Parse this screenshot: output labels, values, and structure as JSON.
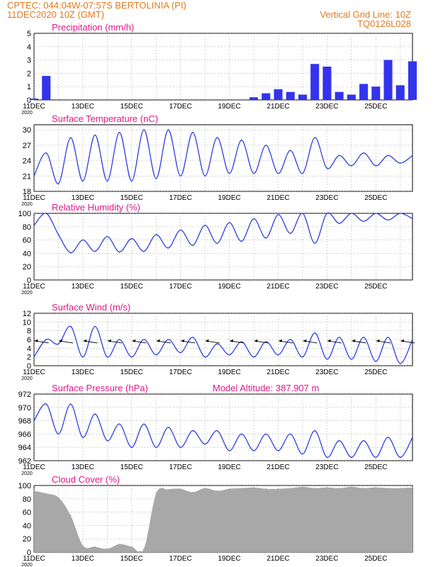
{
  "header": {
    "line1": "CPTEC:   044:04W-07:57S   BERTOLINIA (PI)",
    "line2": "11DEC2020 10Z (GMT)",
    "grid_note": "Vertical Grid Line: 10Z",
    "code": "TQ0126L028"
  },
  "colors": {
    "header": "#e07a1f",
    "title": "#e0188a",
    "line": "#2f3fe0",
    "bar": "#3333ee",
    "cloud": "#a8a8a8",
    "arrow": "#000000"
  },
  "x_ticks": [
    "11DEC",
    "13DEC",
    "15DEC",
    "17DEC",
    "19DEC",
    "21DEC",
    "23DEC",
    "25DEC"
  ],
  "year_label": "2020",
  "chart_data": [
    {
      "type": "bar",
      "name": "precipitation",
      "title": "Precipitation (mm/h)",
      "ylim": [
        0,
        5
      ],
      "yticks": [
        0,
        1,
        2,
        3,
        4,
        5
      ],
      "grid": true,
      "color": "#3333ee",
      "days": [
        0,
        0.5,
        1,
        1.5,
        2,
        2.5,
        3,
        3.5,
        4,
        4.5,
        5,
        5.5,
        6,
        6.5,
        7,
        7.5,
        8,
        8.5,
        9,
        9.5,
        10,
        10.5,
        11,
        11.5,
        12,
        12.5,
        13,
        13.5,
        14,
        14.5,
        15,
        15.5
      ],
      "values": [
        0.1,
        1.8,
        0,
        0,
        0,
        0,
        0,
        0,
        0,
        0,
        0,
        0,
        0,
        0,
        0,
        0,
        0,
        0,
        0.2,
        0.5,
        0.8,
        0.6,
        0.4,
        2.7,
        2.5,
        0.6,
        0.4,
        1.2,
        1.0,
        3.0,
        1.1,
        2.9
      ]
    },
    {
      "type": "line",
      "name": "temperature",
      "title": "Surface Temperature (nC)",
      "ylim": [
        18,
        31
      ],
      "yticks": [
        18,
        21,
        24,
        27,
        30
      ],
      "grid": true,
      "color": "#2f3fe0",
      "days": [
        0,
        0.5,
        1,
        1.5,
        2,
        2.5,
        3,
        3.5,
        4,
        4.5,
        5,
        5.5,
        6,
        6.5,
        7,
        7.5,
        8,
        8.5,
        9,
        9.5,
        10,
        10.5,
        11,
        11.5,
        12,
        12.5,
        13,
        13.5,
        14,
        14.5,
        15,
        15.5
      ],
      "values": [
        21,
        25.5,
        19.5,
        28.5,
        20,
        29,
        20,
        29.5,
        20,
        30,
        20.5,
        30,
        21,
        29.5,
        21,
        28.5,
        21.5,
        28,
        21.5,
        27,
        21.5,
        26,
        21.5,
        28.5,
        22.5,
        25,
        23,
        25.5,
        23,
        25,
        23.5,
        25
      ]
    },
    {
      "type": "line",
      "name": "humidity",
      "title": "Relative Humidity (%)",
      "ylim": [
        0,
        100
      ],
      "yticks": [
        0,
        20,
        40,
        60,
        80,
        100
      ],
      "grid": true,
      "color": "#2f3fe0",
      "days": [
        0,
        0.5,
        1,
        1.5,
        2,
        2.5,
        3,
        3.5,
        4,
        4.5,
        5,
        5.5,
        6,
        6.5,
        7,
        7.5,
        8,
        8.5,
        9,
        9.5,
        10,
        10.5,
        11,
        11.5,
        12,
        12.5,
        13,
        13.5,
        14,
        14.5,
        15,
        15.5
      ],
      "values": [
        82,
        100,
        68,
        41,
        60,
        43,
        65,
        42,
        62,
        43,
        68,
        48,
        75,
        52,
        82,
        55,
        86,
        58,
        92,
        63,
        98,
        70,
        100,
        55,
        100,
        85,
        100,
        88,
        100,
        90,
        100,
        92
      ]
    },
    {
      "type": "line",
      "name": "wind",
      "title": "Surface Wind (m/s)",
      "ylim": [
        0,
        12
      ],
      "yticks": [
        0,
        2,
        4,
        6,
        8,
        10,
        12
      ],
      "grid": true,
      "color": "#2f3fe0",
      "days": [
        0,
        0.5,
        1,
        1.5,
        2,
        2.5,
        3,
        3.5,
        4,
        4.5,
        5,
        5.5,
        6,
        6.5,
        7,
        7.5,
        8,
        8.5,
        9,
        9.5,
        10,
        10.5,
        11,
        11.5,
        12,
        12.5,
        13,
        13.5,
        14,
        14.5,
        15,
        15.5
      ],
      "values": [
        2,
        6,
        5,
        9,
        2,
        9,
        2,
        6,
        2,
        6,
        2.5,
        6,
        3,
        6.5,
        2,
        5,
        2.5,
        5.5,
        2,
        5.5,
        2.5,
        6,
        2,
        7.5,
        1.5,
        6.5,
        1.5,
        6.5,
        1,
        6.5,
        0.5,
        6
      ]
    },
    {
      "type": "line",
      "name": "pressure",
      "title": "Surface Pressure (hPa)",
      "annotation": "Model Altitude: 387.907  m",
      "ylim": [
        962,
        972
      ],
      "yticks": [
        962,
        964,
        966,
        968,
        970,
        972
      ],
      "grid": true,
      "color": "#2f3fe0",
      "days": [
        0,
        0.5,
        1,
        1.5,
        2,
        2.5,
        3,
        3.5,
        4,
        4.5,
        5,
        5.5,
        6,
        6.5,
        7,
        7.5,
        8,
        8.5,
        9,
        9.5,
        10,
        10.5,
        11,
        11.5,
        12,
        12.5,
        13,
        13.5,
        14,
        14.5,
        15,
        15.5
      ],
      "values": [
        968,
        970.5,
        966,
        970.5,
        965.5,
        969,
        965,
        967.5,
        964,
        967.5,
        964,
        967,
        964,
        966.5,
        964.5,
        966.5,
        963.5,
        966,
        963.5,
        966,
        963.5,
        966,
        963,
        966.5,
        962.5,
        965,
        962.5,
        965,
        962.5,
        965.5,
        962.5,
        965.5
      ]
    },
    {
      "type": "area",
      "name": "cloud",
      "title": "Cloud Cover (%)",
      "ylim": [
        0,
        100
      ],
      "yticks": [
        0,
        20,
        40,
        60,
        80,
        100
      ],
      "grid": true,
      "color": "#a8a8a8",
      "days": [
        0,
        0.5,
        1,
        1.5,
        2,
        2.5,
        3,
        3.5,
        4,
        4.5,
        5,
        5.5,
        6,
        6.5,
        7,
        7.5,
        8,
        8.5,
        9,
        9.5,
        10,
        10.5,
        11,
        11.5,
        12,
        12.5,
        13,
        13.5,
        14,
        14.5,
        15,
        15.5
      ],
      "values": [
        92,
        88,
        82,
        55,
        10,
        8,
        5,
        12,
        8,
        5,
        88,
        94,
        95,
        90,
        96,
        92,
        95,
        96,
        97,
        95,
        95,
        96,
        98,
        96,
        97,
        96,
        98,
        96,
        97,
        96,
        96,
        97
      ]
    }
  ]
}
